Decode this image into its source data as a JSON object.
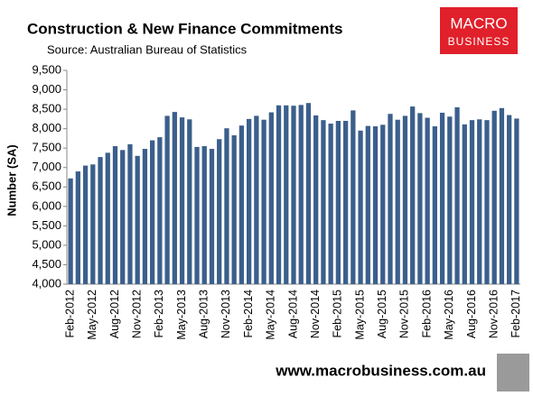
{
  "chart_data": {
    "type": "bar",
    "title": "Construction & New Finance Commitments",
    "subtitle": "Source: Australian Bureau of Statistics",
    "y_label": "Number (SA)",
    "logo": [
      "MACRO",
      "BUSINESS"
    ],
    "footer": "www.macrobusiness.com.au",
    "color": "#3b5f8c",
    "categories": [
      "Feb-2012",
      null,
      null,
      "May-2012",
      null,
      null,
      "Aug-2012",
      null,
      null,
      "Nov-2012",
      null,
      null,
      "Feb-2013",
      null,
      null,
      "May-2013",
      null,
      null,
      "Aug-2013",
      null,
      null,
      "Nov-2013",
      null,
      null,
      "Feb-2014",
      null,
      null,
      "May-2014",
      null,
      null,
      "Aug-2014",
      null,
      null,
      "Nov-2014",
      null,
      null,
      "Feb-2015",
      null,
      null,
      "May-2015",
      null,
      null,
      "Aug-2015",
      null,
      null,
      "Nov-2015",
      null,
      null,
      "Feb-2016",
      null,
      null,
      "May-2016",
      null,
      null,
      "Aug-2016",
      null,
      null,
      "Nov-2016",
      null,
      null,
      "Feb-2017"
    ],
    "values": [
      6720,
      6900,
      7050,
      7080,
      7270,
      7380,
      7550,
      7450,
      7600,
      7300,
      7480,
      7700,
      7780,
      8330,
      8430,
      8290,
      8240,
      7530,
      7550,
      7480,
      7730,
      8010,
      7830,
      8080,
      8250,
      8330,
      8230,
      8420,
      8600,
      8600,
      8590,
      8610,
      8660,
      8340,
      8220,
      8130,
      8200,
      8200,
      8470,
      7950,
      8070,
      8060,
      8100,
      8380,
      8230,
      8330,
      8570,
      8400,
      8280,
      8060,
      8410,
      8310,
      8550,
      8110,
      8220,
      8240,
      8220,
      8460,
      8530,
      8350,
      8260
    ],
    "ylim": [
      4000,
      9500
    ],
    "yticks": [
      {
        "value": 4000,
        "label": "4,000"
      },
      {
        "value": 4500,
        "label": "4,500"
      },
      {
        "value": 5000,
        "label": "5,000"
      },
      {
        "value": 5500,
        "label": "5,500"
      },
      {
        "value": 6000,
        "label": "6,000"
      },
      {
        "value": 6500,
        "label": "6,500"
      },
      {
        "value": 7000,
        "label": "7,000"
      },
      {
        "value": 7500,
        "label": "7,500"
      },
      {
        "value": 8000,
        "label": "8,000"
      },
      {
        "value": 8500,
        "label": "8,500"
      },
      {
        "value": 9000,
        "label": "9,000"
      },
      {
        "value": 9500,
        "label": "9,500"
      }
    ]
  }
}
